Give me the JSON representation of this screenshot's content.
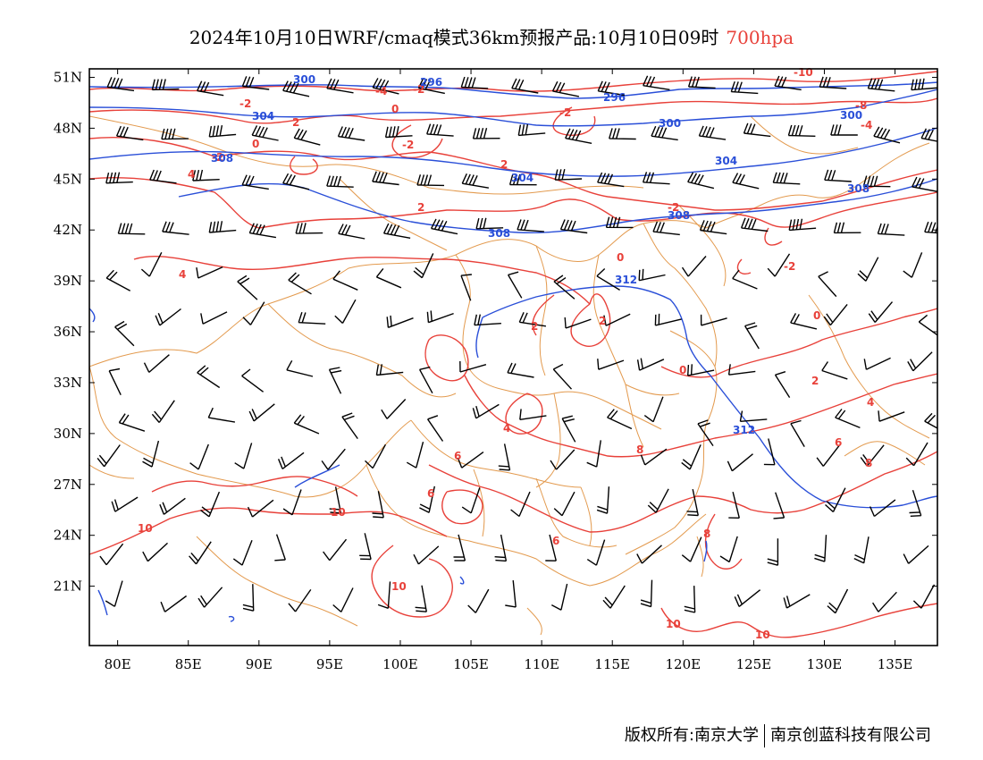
{
  "title": {
    "main": "2024年10月10日WRF/cmaq模式36km预报产品:10月10日09时",
    "level": "700hpa"
  },
  "map": {
    "lon_range": [
      78,
      138
    ],
    "lat_range": [
      17.5,
      51.5
    ],
    "x_ticks": [
      "80E",
      "85E",
      "90E",
      "95E",
      "100E",
      "105E",
      "110E",
      "115E",
      "120E",
      "125E",
      "130E",
      "135E"
    ],
    "y_ticks": [
      "51N",
      "48N",
      "45N",
      "42N",
      "39N",
      "36N",
      "33N",
      "30N",
      "27N",
      "24N",
      "21N"
    ],
    "colors": {
      "temperature": "#e8413a",
      "geopotential": "#2a4fd8",
      "boundary": "#e39a4e",
      "wind": "#000000"
    },
    "geopotential_labels": [
      "300",
      "296",
      "304",
      "300",
      "296",
      "300",
      "304",
      "304",
      "308",
      "308",
      "308",
      "312",
      "312",
      "308"
    ],
    "temperature_labels": [
      "-2",
      "-4",
      "-2",
      "-10",
      "-8",
      "0",
      "-2",
      "-4",
      "2",
      "-2",
      "-2",
      "2",
      "0",
      "4",
      "-2",
      "4",
      "2",
      "0",
      "-2",
      "2",
      "0",
      "2",
      "2",
      "4",
      "0",
      "4",
      "6",
      "8",
      "6",
      "6",
      "8",
      "10",
      "10",
      "6",
      "8",
      "10",
      "10",
      "10"
    ]
  },
  "footer": {
    "copyright": "版权所有:南京大学",
    "company": "南京创蓝科技有限公司"
  }
}
